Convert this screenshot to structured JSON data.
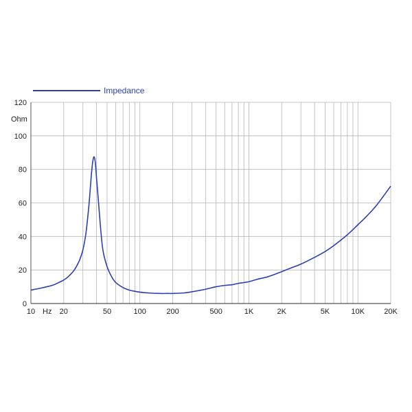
{
  "chart_data": {
    "type": "line",
    "title": "",
    "xlabel": "",
    "ylabel": "",
    "x_scale": "log",
    "xlim": [
      10,
      20000
    ],
    "ylim": [
      0,
      120
    ],
    "grid": true,
    "legend_position": "top-left",
    "colors": {
      "series": "#2a3fb5",
      "grid": "#b5b5b5",
      "axis": "#555555",
      "text": "#222222"
    },
    "y_ticks": [
      {
        "value": 0,
        "label": "0"
      },
      {
        "value": 20,
        "label": "20"
      },
      {
        "value": 40,
        "label": "40"
      },
      {
        "value": 60,
        "label": "60"
      },
      {
        "value": 80,
        "label": "80"
      },
      {
        "value": 100,
        "label": "100"
      },
      {
        "value": 120,
        "label": "120"
      }
    ],
    "y_unit_label": "Ohm",
    "x_ticks": [
      {
        "value": 10,
        "label": "10"
      },
      {
        "value": 20,
        "label": "20"
      },
      {
        "value": 50,
        "label": "50"
      },
      {
        "value": 100,
        "label": "100"
      },
      {
        "value": 200,
        "label": "200"
      },
      {
        "value": 500,
        "label": "500"
      },
      {
        "value": 1000,
        "label": "1K"
      },
      {
        "value": 2000,
        "label": "2K"
      },
      {
        "value": 5000,
        "label": "5K"
      },
      {
        "value": 10000,
        "label": "10K"
      },
      {
        "value": 20000,
        "label": "20K"
      }
    ],
    "x_unit_label": "Hz",
    "x_gridlines": [
      10,
      20,
      30,
      40,
      50,
      60,
      70,
      80,
      90,
      100,
      200,
      300,
      400,
      500,
      600,
      700,
      800,
      900,
      1000,
      2000,
      3000,
      4000,
      5000,
      6000,
      7000,
      8000,
      9000,
      10000,
      20000
    ],
    "series": [
      {
        "name": "Impedance",
        "x": [
          10,
          12,
          14,
          16,
          18,
          20,
          22,
          25,
          28,
          30,
          32,
          34,
          35,
          36,
          37,
          38,
          39,
          40,
          42,
          44,
          46,
          50,
          55,
          60,
          70,
          80,
          100,
          120,
          150,
          180,
          200,
          250,
          300,
          400,
          500,
          600,
          700,
          800,
          900,
          1000,
          1200,
          1500,
          2000,
          2500,
          3000,
          4000,
          5000,
          6000,
          8000,
          10000,
          12000,
          15000,
          20000
        ],
        "y": [
          8,
          9,
          10,
          11,
          12.5,
          14,
          16,
          20,
          26,
          32,
          42,
          58,
          68,
          78,
          85,
          87.5,
          84,
          75,
          58,
          42,
          31,
          22,
          16,
          12.5,
          9.5,
          8,
          6.8,
          6.3,
          6,
          6,
          6,
          6.3,
          7,
          8.5,
          10,
          10.8,
          11.2,
          12,
          12.5,
          13,
          14.5,
          16,
          19,
          21.5,
          23.5,
          27.5,
          31,
          34.5,
          41,
          47,
          52,
          59,
          70
        ]
      }
    ]
  }
}
